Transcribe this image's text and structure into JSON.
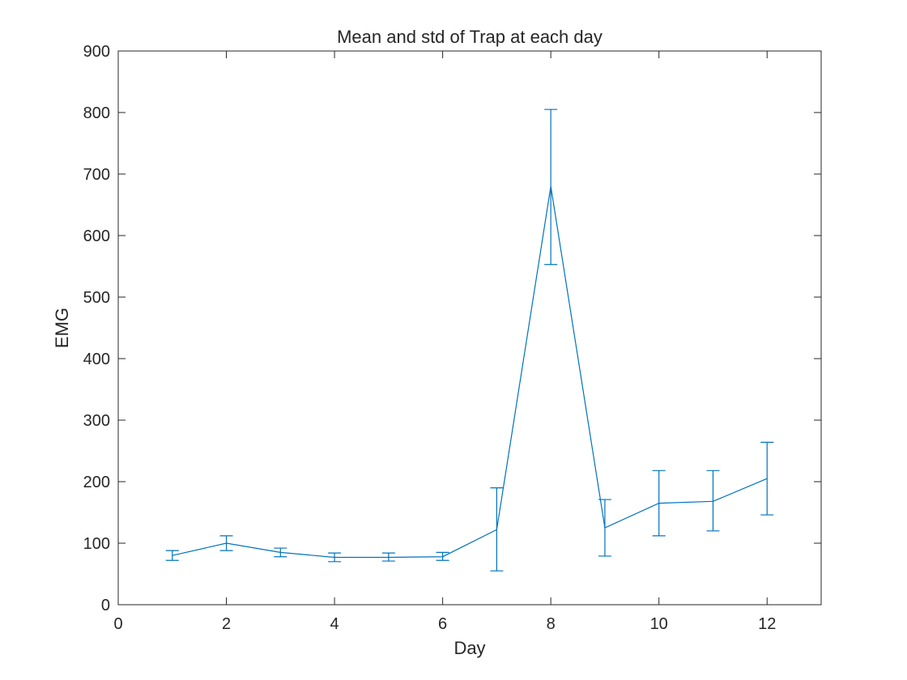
{
  "chart_data": {
    "type": "line",
    "title": "Mean and std of Trap at each day",
    "xlabel": "Day",
    "ylabel": "EMG",
    "xlim": [
      0,
      13
    ],
    "ylim": [
      0,
      900
    ],
    "xticks": [
      0,
      2,
      4,
      6,
      8,
      10,
      12
    ],
    "yticks": [
      0,
      100,
      200,
      300,
      400,
      500,
      600,
      700,
      800,
      900
    ],
    "grid": false,
    "color": "#0072BD",
    "series": [
      {
        "x": [
          1,
          2,
          3,
          4,
          5,
          6,
          7,
          8,
          9,
          10,
          11,
          12
        ],
        "mean": [
          80,
          100,
          85,
          77,
          77,
          78,
          122,
          680,
          125,
          165,
          168,
          205
        ],
        "lower": [
          72,
          88,
          78,
          70,
          71,
          72,
          55,
          553,
          79,
          112,
          120,
          146
        ],
        "upper": [
          88,
          112,
          92,
          84,
          84,
          85,
          190,
          805,
          171,
          218,
          218,
          264
        ]
      }
    ]
  }
}
